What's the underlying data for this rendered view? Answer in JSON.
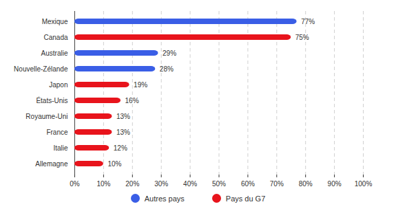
{
  "chart_data": {
    "type": "bar",
    "orientation": "horizontal",
    "categories": [
      "Mexique",
      "Canada",
      "Australie",
      "Nouvelle-Zélande",
      "Japon",
      "États-Unis",
      "Royaume-Uni",
      "France",
      "Italie",
      "Allemagne"
    ],
    "series": [
      {
        "name": "Autres pays",
        "color": "#3a5ee6",
        "values": [
          77,
          null,
          29,
          28,
          null,
          null,
          null,
          null,
          null,
          null
        ],
        "value_labels": [
          "77%",
          null,
          "29%",
          "28%",
          null,
          null,
          null,
          null,
          null,
          null
        ]
      },
      {
        "name": "Pays du G7",
        "color": "#e8141c",
        "values": [
          null,
          75,
          null,
          null,
          19,
          16,
          13,
          13,
          12,
          10
        ],
        "value_labels": [
          null,
          "75%",
          null,
          null,
          "19%",
          "16%",
          "13%",
          "13%",
          "12%",
          "10%"
        ]
      }
    ],
    "xlim": [
      0,
      100
    ],
    "xticks": [
      {
        "value": 0,
        "label": "0%"
      },
      {
        "value": 10,
        "label": "10%"
      },
      {
        "value": 20,
        "label": "20%"
      },
      {
        "value": 30,
        "label": "30%"
      },
      {
        "value": 40,
        "label": "40%"
      },
      {
        "value": 50,
        "label": "50%"
      },
      {
        "value": 60,
        "label": "60%"
      },
      {
        "value": 70,
        "label": "70%"
      },
      {
        "value": 80,
        "label": "80%"
      },
      {
        "value": 90,
        "label": "90%"
      },
      {
        "value": 100,
        "label": "100%"
      }
    ],
    "grid": true,
    "data_labels": true,
    "legend": "bottom"
  }
}
